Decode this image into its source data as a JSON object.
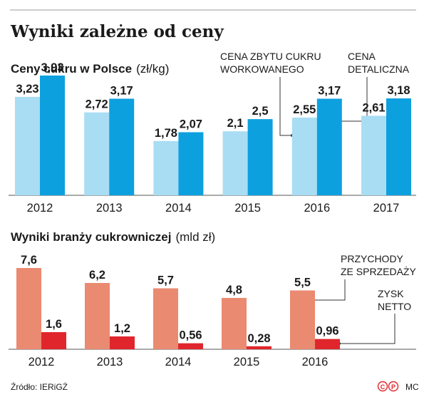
{
  "title": "Wyniki zależne od ceny",
  "source": "Źródło: IERiGŻ",
  "author": "MC",
  "copyright_marks": [
    "©",
    "℗"
  ],
  "colors": {
    "retail_light": "#a8ddf4",
    "wholesale_blue": "#0da0df",
    "revenue_salmon": "#ea8a70",
    "profit_red": "#e0262c",
    "text": "#1a1a1a",
    "axis": "#555555"
  },
  "chart_data": [
    {
      "type": "bar",
      "title": "Ceny cukru w Polsce",
      "unit": "(zł/kg)",
      "categories": [
        "2012",
        "2013",
        "2014",
        "2015",
        "2016",
        "2017"
      ],
      "series": [
        {
          "name": "CENA ZBYTU CUKRU WORKOWANEGO",
          "label_lines": [
            "CENA ZBYTU CUKRU",
            "WORKOWANEGO"
          ],
          "values": [
            3.23,
            2.72,
            1.78,
            2.1,
            2.55,
            2.61
          ],
          "labels": [
            "3,23",
            "2,72",
            "1,78",
            "2,1",
            "2,55",
            "2,61"
          ],
          "color": "#a8ddf4"
        },
        {
          "name": "CENA DETALICZNA",
          "label_lines": [
            "CENA",
            "DETALICZNA"
          ],
          "values": [
            3.93,
            3.17,
            2.07,
            2.5,
            3.17,
            3.18
          ],
          "labels": [
            "3,93",
            "3,17",
            "2,07",
            "2,5",
            "3,17",
            "3,18"
          ],
          "color": "#0da0df"
        }
      ],
      "ylim": [
        0,
        4
      ],
      "grid": false
    },
    {
      "type": "bar",
      "title": "Wyniki branży cukrowniczej",
      "unit": "(mld zł)",
      "categories": [
        "2012",
        "2013",
        "2014",
        "2015",
        "2016"
      ],
      "series": [
        {
          "name": "PRZYCHODY ZE SPRZEDAŻY",
          "label_lines": [
            "PRZYCHODY",
            "ZE SPRZEDAŻY"
          ],
          "values": [
            7.6,
            6.2,
            5.7,
            4.8,
            5.5
          ],
          "labels": [
            "7,6",
            "6,2",
            "5,7",
            "4,8",
            "5,5"
          ],
          "color": "#ea8a70"
        },
        {
          "name": "ZYSK NETTO",
          "label_lines": [
            "ZYSK",
            "NETTO"
          ],
          "values": [
            1.6,
            1.2,
            0.56,
            0.28,
            0.96
          ],
          "labels": [
            "1,6",
            "1,2",
            "0,56",
            "0,28",
            "0,96"
          ],
          "color": "#e0262c"
        }
      ],
      "ylim": [
        0,
        7.6
      ],
      "grid": false
    }
  ]
}
